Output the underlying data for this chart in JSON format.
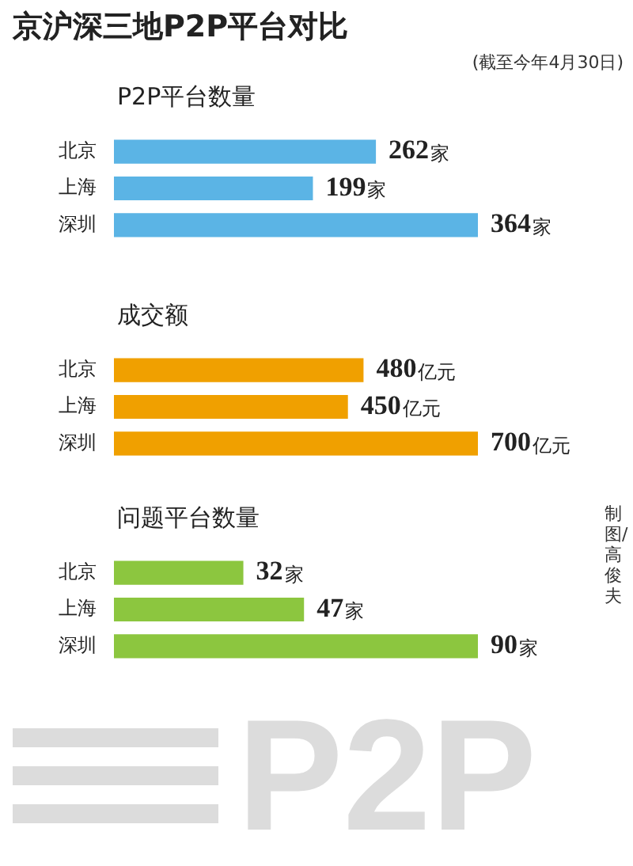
{
  "chart_data": [
    {
      "type": "other",
      "title": "京沪深三地P2P平台对比",
      "subtitle": "(截至今年4月30日)",
      "annotations": [
        "制图/高俊夫",
        "P2P"
      ]
    },
    {
      "type": "bar",
      "orientation": "horizontal",
      "title": "P2P平台数量",
      "categories": [
        "北京",
        "上海",
        "深圳"
      ],
      "values": [
        262,
        199,
        364
      ],
      "color": "#5bb4e5",
      "value_labels": [
        "262家",
        "199家",
        "364家"
      ]
    },
    {
      "type": "bar",
      "orientation": "horizontal",
      "title": "成交额",
      "categories": [
        "北京",
        "上海",
        "深圳"
      ],
      "values": [
        480,
        450,
        700
      ],
      "color": "#f0a000",
      "value_labels": [
        "480亿元",
        "450亿元",
        "700亿元"
      ]
    },
    {
      "type": "bar",
      "orientation": "horizontal",
      "title": "问题平台数量",
      "categories": [
        "北京",
        "上海",
        "深圳"
      ],
      "values": [
        32,
        47,
        90
      ],
      "color": "#8cc63f",
      "value_labels": [
        "32家",
        "47家",
        "90家"
      ]
    }
  ]
}
